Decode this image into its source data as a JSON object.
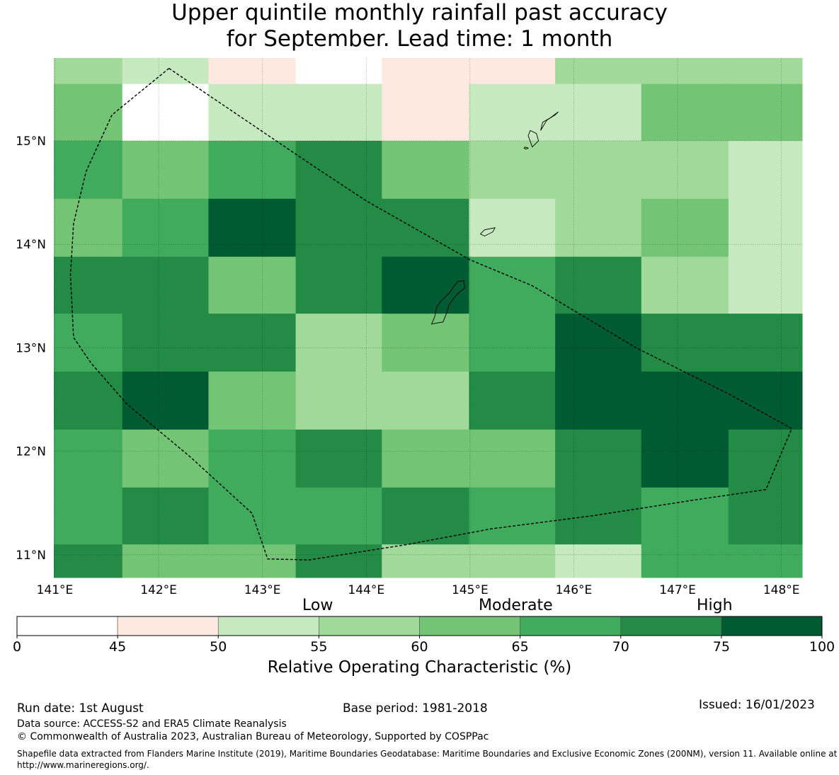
{
  "title": {
    "line1": "Upper quintile monthly rainfall past accuracy",
    "line2": "for September. Lead time: 1 month"
  },
  "map": {
    "lon_range": [
      140.99,
      148.2
    ],
    "lat_range": [
      10.78,
      15.8
    ],
    "lon_ticks": [
      "141°E",
      "142°E",
      "143°E",
      "144°E",
      "145°E",
      "146°E",
      "147°E",
      "148°E"
    ],
    "lat_ticks": [
      "15°N",
      "14°N",
      "13°N",
      "12°N",
      "11°N"
    ],
    "grid_cells": [
      {
        "lon": [
          140.99,
          141.65
        ],
        "lat": [
          15.55,
          15.8
        ],
        "class": 4
      },
      {
        "lon": [
          141.65,
          142.48
        ],
        "lat": [
          15.55,
          15.8
        ],
        "class": 3
      },
      {
        "lon": [
          142.48,
          143.32
        ],
        "lat": [
          15.55,
          15.8
        ],
        "class": 2
      },
      {
        "lon": [
          143.32,
          144.15
        ],
        "lat": [
          15.55,
          15.8
        ],
        "class": 1
      },
      {
        "lon": [
          144.15,
          144.99
        ],
        "lat": [
          15.55,
          15.8
        ],
        "class": 2
      },
      {
        "lon": [
          144.99,
          145.82
        ],
        "lat": [
          15.55,
          15.8
        ],
        "class": 2
      },
      {
        "lon": [
          145.82,
          146.65
        ],
        "lat": [
          15.55,
          15.8
        ],
        "class": 4
      },
      {
        "lon": [
          146.65,
          147.49
        ],
        "lat": [
          15.55,
          15.8
        ],
        "class": 4
      },
      {
        "lon": [
          147.49,
          148.2
        ],
        "lat": [
          15.55,
          15.8
        ],
        "class": 4
      },
      {
        "lon": [
          140.99,
          141.65
        ],
        "lat": [
          15.0,
          15.55
        ],
        "class": 5
      },
      {
        "lon": [
          141.65,
          142.48
        ],
        "lat": [
          15.0,
          15.55
        ],
        "class": 1
      },
      {
        "lon": [
          142.48,
          143.32
        ],
        "lat": [
          15.0,
          15.55
        ],
        "class": 3
      },
      {
        "lon": [
          143.32,
          144.15
        ],
        "lat": [
          15.0,
          15.55
        ],
        "class": 3
      },
      {
        "lon": [
          144.15,
          144.99
        ],
        "lat": [
          15.0,
          15.55
        ],
        "class": 2
      },
      {
        "lon": [
          144.99,
          145.82
        ],
        "lat": [
          15.0,
          15.55
        ],
        "class": 3
      },
      {
        "lon": [
          145.82,
          146.65
        ],
        "lat": [
          15.0,
          15.55
        ],
        "class": 3
      },
      {
        "lon": [
          146.65,
          147.49
        ],
        "lat": [
          15.0,
          15.55
        ],
        "class": 5
      },
      {
        "lon": [
          147.49,
          148.2
        ],
        "lat": [
          15.0,
          15.55
        ],
        "class": 5
      },
      {
        "lon": [
          140.99,
          141.65
        ],
        "lat": [
          14.44,
          15.0
        ],
        "class": 6
      },
      {
        "lon": [
          141.65,
          142.48
        ],
        "lat": [
          14.44,
          15.0
        ],
        "class": 5
      },
      {
        "lon": [
          142.48,
          143.32
        ],
        "lat": [
          14.44,
          15.0
        ],
        "class": 6
      },
      {
        "lon": [
          143.32,
          144.15
        ],
        "lat": [
          14.44,
          15.0
        ],
        "class": 7
      },
      {
        "lon": [
          144.15,
          144.99
        ],
        "lat": [
          14.44,
          15.0
        ],
        "class": 5
      },
      {
        "lon": [
          144.99,
          145.82
        ],
        "lat": [
          14.44,
          15.0
        ],
        "class": 4
      },
      {
        "lon": [
          145.82,
          146.65
        ],
        "lat": [
          14.44,
          15.0
        ],
        "class": 4
      },
      {
        "lon": [
          146.65,
          147.49
        ],
        "lat": [
          14.44,
          15.0
        ],
        "class": 4
      },
      {
        "lon": [
          147.49,
          148.2
        ],
        "lat": [
          14.44,
          15.0
        ],
        "class": 3
      },
      {
        "lon": [
          140.99,
          141.65
        ],
        "lat": [
          13.88,
          14.44
        ],
        "class": 5
      },
      {
        "lon": [
          141.65,
          142.48
        ],
        "lat": [
          13.88,
          14.44
        ],
        "class": 6
      },
      {
        "lon": [
          142.48,
          143.32
        ],
        "lat": [
          13.88,
          14.44
        ],
        "class": 8
      },
      {
        "lon": [
          143.32,
          144.15
        ],
        "lat": [
          13.88,
          14.44
        ],
        "class": 7
      },
      {
        "lon": [
          144.15,
          144.99
        ],
        "lat": [
          13.88,
          14.44
        ],
        "class": 7
      },
      {
        "lon": [
          144.99,
          145.82
        ],
        "lat": [
          13.88,
          14.44
        ],
        "class": 3
      },
      {
        "lon": [
          145.82,
          146.65
        ],
        "lat": [
          13.88,
          14.44
        ],
        "class": 4
      },
      {
        "lon": [
          146.65,
          147.49
        ],
        "lat": [
          13.88,
          14.44
        ],
        "class": 5
      },
      {
        "lon": [
          147.49,
          148.2
        ],
        "lat": [
          13.88,
          14.44
        ],
        "class": 3
      },
      {
        "lon": [
          140.99,
          141.65
        ],
        "lat": [
          13.33,
          13.88
        ],
        "class": 7
      },
      {
        "lon": [
          141.65,
          142.48
        ],
        "lat": [
          13.33,
          13.88
        ],
        "class": 7
      },
      {
        "lon": [
          142.48,
          143.32
        ],
        "lat": [
          13.33,
          13.88
        ],
        "class": 5
      },
      {
        "lon": [
          143.32,
          144.15
        ],
        "lat": [
          13.33,
          13.88
        ],
        "class": 7
      },
      {
        "lon": [
          144.15,
          144.99
        ],
        "lat": [
          13.33,
          13.88
        ],
        "class": 8
      },
      {
        "lon": [
          144.99,
          145.82
        ],
        "lat": [
          13.33,
          13.88
        ],
        "class": 6
      },
      {
        "lon": [
          145.82,
          146.65
        ],
        "lat": [
          13.33,
          13.88
        ],
        "class": 7
      },
      {
        "lon": [
          146.65,
          147.49
        ],
        "lat": [
          13.33,
          13.88
        ],
        "class": 4
      },
      {
        "lon": [
          147.49,
          148.2
        ],
        "lat": [
          13.33,
          13.88
        ],
        "class": 3
      },
      {
        "lon": [
          140.99,
          141.65
        ],
        "lat": [
          12.77,
          13.33
        ],
        "class": 6
      },
      {
        "lon": [
          141.65,
          142.48
        ],
        "lat": [
          12.77,
          13.33
        ],
        "class": 7
      },
      {
        "lon": [
          142.48,
          143.32
        ],
        "lat": [
          12.77,
          13.33
        ],
        "class": 7
      },
      {
        "lon": [
          143.32,
          144.15
        ],
        "lat": [
          12.77,
          13.33
        ],
        "class": 4
      },
      {
        "lon": [
          144.15,
          144.99
        ],
        "lat": [
          12.77,
          13.33
        ],
        "class": 5
      },
      {
        "lon": [
          144.99,
          145.82
        ],
        "lat": [
          12.77,
          13.33
        ],
        "class": 6
      },
      {
        "lon": [
          145.82,
          146.65
        ],
        "lat": [
          12.77,
          13.33
        ],
        "class": 8
      },
      {
        "lon": [
          146.65,
          147.49
        ],
        "lat": [
          12.77,
          13.33
        ],
        "class": 7
      },
      {
        "lon": [
          147.49,
          148.2
        ],
        "lat": [
          12.77,
          13.33
        ],
        "class": 7
      },
      {
        "lon": [
          140.99,
          141.65
        ],
        "lat": [
          12.21,
          12.77
        ],
        "class": 7
      },
      {
        "lon": [
          141.65,
          142.48
        ],
        "lat": [
          12.21,
          12.77
        ],
        "class": 8
      },
      {
        "lon": [
          142.48,
          143.32
        ],
        "lat": [
          12.21,
          12.77
        ],
        "class": 5
      },
      {
        "lon": [
          143.32,
          144.15
        ],
        "lat": [
          12.21,
          12.77
        ],
        "class": 4
      },
      {
        "lon": [
          144.15,
          144.99
        ],
        "lat": [
          12.21,
          12.77
        ],
        "class": 4
      },
      {
        "lon": [
          144.99,
          145.82
        ],
        "lat": [
          12.21,
          12.77
        ],
        "class": 7
      },
      {
        "lon": [
          145.82,
          146.65
        ],
        "lat": [
          12.21,
          12.77
        ],
        "class": 8
      },
      {
        "lon": [
          146.65,
          147.49
        ],
        "lat": [
          12.21,
          12.77
        ],
        "class": 8
      },
      {
        "lon": [
          147.49,
          148.2
        ],
        "lat": [
          12.21,
          12.77
        ],
        "class": 8
      },
      {
        "lon": [
          140.99,
          141.65
        ],
        "lat": [
          11.65,
          12.21
        ],
        "class": 6
      },
      {
        "lon": [
          141.65,
          142.48
        ],
        "lat": [
          11.65,
          12.21
        ],
        "class": 5
      },
      {
        "lon": [
          142.48,
          143.32
        ],
        "lat": [
          11.65,
          12.21
        ],
        "class": 6
      },
      {
        "lon": [
          143.32,
          144.15
        ],
        "lat": [
          11.65,
          12.21
        ],
        "class": 7
      },
      {
        "lon": [
          144.15,
          144.99
        ],
        "lat": [
          11.65,
          12.21
        ],
        "class": 5
      },
      {
        "lon": [
          144.99,
          145.82
        ],
        "lat": [
          11.65,
          12.21
        ],
        "class": 5
      },
      {
        "lon": [
          145.82,
          146.65
        ],
        "lat": [
          11.65,
          12.21
        ],
        "class": 7
      },
      {
        "lon": [
          146.65,
          147.49
        ],
        "lat": [
          11.65,
          12.21
        ],
        "class": 8
      },
      {
        "lon": [
          147.49,
          148.2
        ],
        "lat": [
          11.65,
          12.21
        ],
        "class": 7
      },
      {
        "lon": [
          140.99,
          141.65
        ],
        "lat": [
          11.1,
          11.65
        ],
        "class": 6
      },
      {
        "lon": [
          141.65,
          142.48
        ],
        "lat": [
          11.1,
          11.65
        ],
        "class": 7
      },
      {
        "lon": [
          142.48,
          143.32
        ],
        "lat": [
          11.1,
          11.65
        ],
        "class": 6
      },
      {
        "lon": [
          143.32,
          144.15
        ],
        "lat": [
          11.1,
          11.65
        ],
        "class": 6
      },
      {
        "lon": [
          144.15,
          144.99
        ],
        "lat": [
          11.1,
          11.65
        ],
        "class": 7
      },
      {
        "lon": [
          144.99,
          145.82
        ],
        "lat": [
          11.1,
          11.65
        ],
        "class": 6
      },
      {
        "lon": [
          145.82,
          146.65
        ],
        "lat": [
          11.1,
          11.65
        ],
        "class": 7
      },
      {
        "lon": [
          146.65,
          147.49
        ],
        "lat": [
          11.1,
          11.65
        ],
        "class": 6
      },
      {
        "lon": [
          147.49,
          148.2
        ],
        "lat": [
          11.1,
          11.65
        ],
        "class": 7
      },
      {
        "lon": [
          140.99,
          141.65
        ],
        "lat": [
          10.78,
          11.1
        ],
        "class": 7
      },
      {
        "lon": [
          141.65,
          142.48
        ],
        "lat": [
          10.78,
          11.1
        ],
        "class": 5
      },
      {
        "lon": [
          142.48,
          143.32
        ],
        "lat": [
          10.78,
          11.1
        ],
        "class": 5
      },
      {
        "lon": [
          143.32,
          144.15
        ],
        "lat": [
          10.78,
          11.1
        ],
        "class": 7
      },
      {
        "lon": [
          144.15,
          144.99
        ],
        "lat": [
          10.78,
          11.1
        ],
        "class": 4
      },
      {
        "lon": [
          144.99,
          145.82
        ],
        "lat": [
          10.78,
          11.1
        ],
        "class": 4
      },
      {
        "lon": [
          145.82,
          146.65
        ],
        "lat": [
          10.78,
          11.1
        ],
        "class": 3
      },
      {
        "lon": [
          146.65,
          147.49
        ],
        "lat": [
          10.78,
          11.1
        ],
        "class": 6
      },
      {
        "lon": [
          147.49,
          148.2
        ],
        "lat": [
          10.78,
          11.1
        ],
        "class": 6
      }
    ],
    "eez_boundary": [
      [
        142.1,
        15.7
      ],
      [
        141.55,
        15.25
      ],
      [
        141.3,
        14.7
      ],
      [
        141.18,
        14.2
      ],
      [
        141.15,
        13.7
      ],
      [
        141.18,
        13.1
      ],
      [
        141.35,
        12.85
      ],
      [
        141.7,
        12.45
      ],
      [
        142.3,
        11.95
      ],
      [
        142.9,
        11.4
      ],
      [
        143.05,
        10.96
      ],
      [
        143.45,
        10.95
      ],
      [
        144.4,
        11.1
      ],
      [
        145.2,
        11.25
      ],
      [
        146.2,
        11.38
      ],
      [
        147.1,
        11.52
      ],
      [
        147.85,
        11.63
      ],
      [
        148.1,
        12.22
      ],
      [
        147.5,
        12.55
      ],
      [
        146.6,
        13.0
      ],
      [
        146.1,
        13.3
      ],
      [
        145.6,
        13.6
      ],
      [
        145.0,
        13.85
      ],
      [
        144.0,
        14.42
      ],
      [
        143.5,
        14.75
      ],
      [
        142.1,
        15.7
      ]
    ],
    "islands": [
      [
        [
          144.63,
          13.23
        ],
        [
          144.74,
          13.25
        ],
        [
          144.78,
          13.35
        ],
        [
          144.8,
          13.42
        ],
        [
          144.86,
          13.5
        ],
        [
          144.95,
          13.58
        ],
        [
          144.94,
          13.65
        ],
        [
          144.88,
          13.64
        ],
        [
          144.8,
          13.53
        ],
        [
          144.72,
          13.45
        ],
        [
          144.68,
          13.4
        ],
        [
          144.66,
          13.3
        ],
        [
          144.63,
          13.23
        ]
      ],
      [
        [
          145.1,
          14.1
        ],
        [
          145.14,
          14.14
        ],
        [
          145.24,
          14.16
        ],
        [
          145.22,
          14.12
        ],
        [
          145.14,
          14.08
        ],
        [
          145.1,
          14.1
        ]
      ],
      [
        [
          145.54,
          14.92
        ],
        [
          145.56,
          14.93
        ],
        [
          145.53,
          14.94
        ],
        [
          145.52,
          14.93
        ],
        [
          145.54,
          14.92
        ]
      ],
      [
        [
          145.6,
          14.94
        ],
        [
          145.66,
          15.0
        ],
        [
          145.64,
          15.07
        ],
        [
          145.58,
          15.1
        ],
        [
          145.56,
          15.05
        ],
        [
          145.6,
          14.94
        ]
      ],
      [
        [
          145.68,
          15.1
        ],
        [
          145.74,
          15.2
        ],
        [
          145.82,
          15.25
        ],
        [
          145.85,
          15.28
        ],
        [
          145.77,
          15.22
        ],
        [
          145.7,
          15.18
        ],
        [
          145.68,
          15.1
        ]
      ]
    ]
  },
  "colorbar": {
    "tick_values": [
      0,
      45,
      50,
      55,
      60,
      65,
      70,
      75,
      100
    ],
    "tick_labels": [
      "0",
      "45",
      "50",
      "55",
      "60",
      "65",
      "70",
      "75",
      "100"
    ],
    "colors": [
      "#ffffff",
      "#fee9e0",
      "#c7e9c0",
      "#a1d99b",
      "#74c476",
      "#41ab5d",
      "#238b45",
      "#005a32"
    ],
    "category_labels": [
      "Low",
      "Moderate",
      "High"
    ],
    "title": "Relative Operating Characteristic (%)"
  },
  "footer": {
    "run_date": "Run date: 1st August",
    "base_period": "Base period: 1981-2018",
    "issued": "Issued: 16/01/2023",
    "data_source": "Data source: ACCESS-S2 and ERA5 Climate Reanalysis",
    "copyright": "© Commonwealth of Australia 2023, Australian Bureau of Meteorology, Supported by COSPPac",
    "shapefile": "Shapefile data extracted from Flanders Marine Institute (2019), Maritime Boundaries Geodatabase: Maritime Boundaries and Exclusive Economic Zones (200NM), version 11. Available online at http://www.marineregions.org/."
  }
}
